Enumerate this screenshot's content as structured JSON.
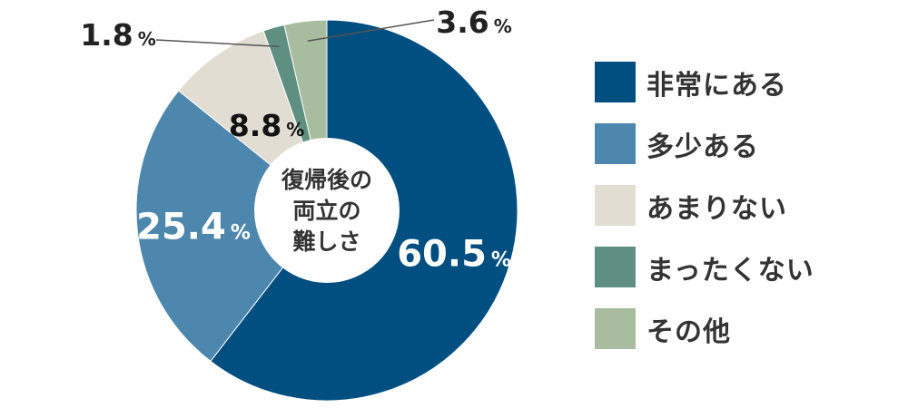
{
  "chart_data": {
    "type": "pie",
    "center_title_lines": [
      "復帰後の",
      "両立の",
      "難しさ"
    ],
    "categories": [
      "非常にある",
      "多少ある",
      "あまりない",
      "まったくない",
      "その他"
    ],
    "values": [
      60.5,
      25.4,
      8.8,
      1.8,
      3.6
    ],
    "value_labels": [
      "60.5",
      "25.4",
      "8.8",
      "1.8",
      "3.6"
    ],
    "unit": "%",
    "colors": [
      "#004f80",
      "#4e87ad",
      "#e1ddd3",
      "#5e8f80",
      "#a8bca0"
    ],
    "label_colors": [
      "#ffffff",
      "#ffffff",
      "#111111",
      "#222222",
      "#222222"
    ],
    "legend_position": "right",
    "donut": true
  }
}
